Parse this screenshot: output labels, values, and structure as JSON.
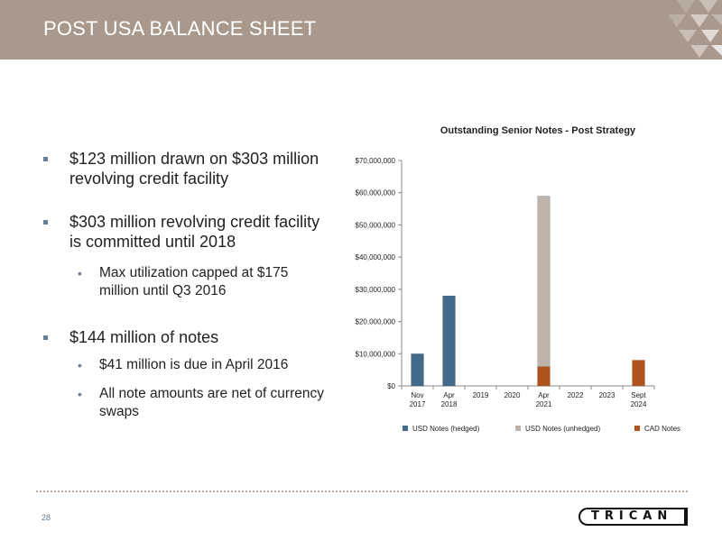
{
  "slide": {
    "title": "POST USA BALANCE SHEET",
    "page_number": "28",
    "logo_text": "TRICAN"
  },
  "bullets": [
    {
      "text": "$123 million drawn on $303 million revolving credit facility",
      "sub": []
    },
    {
      "text": "$303 million revolving credit facility is committed until 2018",
      "sub": [
        "Max utilization capped at $175 million until Q3 2016"
      ]
    },
    {
      "text": "$144 million of notes",
      "sub": [
        "$41 million is due in April 2016",
        "All note amounts are net of currency swaps"
      ]
    }
  ],
  "chart_data": {
    "type": "bar",
    "stacked": true,
    "title": "Outstanding Senior Notes - Post Strategy",
    "categories": [
      [
        "Nov",
        "2017"
      ],
      [
        "Apr",
        "2018"
      ],
      [
        "2019"
      ],
      [
        "2020"
      ],
      [
        "Apr",
        "2021"
      ],
      [
        "2022"
      ],
      [
        "2023"
      ],
      [
        "Sept",
        "2024"
      ]
    ],
    "series": [
      {
        "name": "USD Notes (hedged)",
        "color": "#426a8a",
        "values": [
          10000000,
          28000000,
          0,
          0,
          0,
          0,
          0,
          0
        ]
      },
      {
        "name": "USD Notes (unhedged)",
        "color": "#bdb3aa",
        "values": [
          0,
          0,
          0,
          0,
          53000000,
          0,
          0,
          0
        ]
      },
      {
        "name": "CAD Notes",
        "color": "#b0521c",
        "values": [
          0,
          0,
          0,
          0,
          6000000,
          0,
          0,
          8000000
        ]
      }
    ],
    "ylim": [
      0,
      70000000
    ],
    "yticks": [
      "$0",
      "$10,000,000",
      "$20,000,000",
      "$30,000,000",
      "$40,000,000",
      "$50,000,000",
      "$60,000,000",
      "$70,000,000"
    ],
    "grid": false,
    "legend_position": "bottom"
  }
}
